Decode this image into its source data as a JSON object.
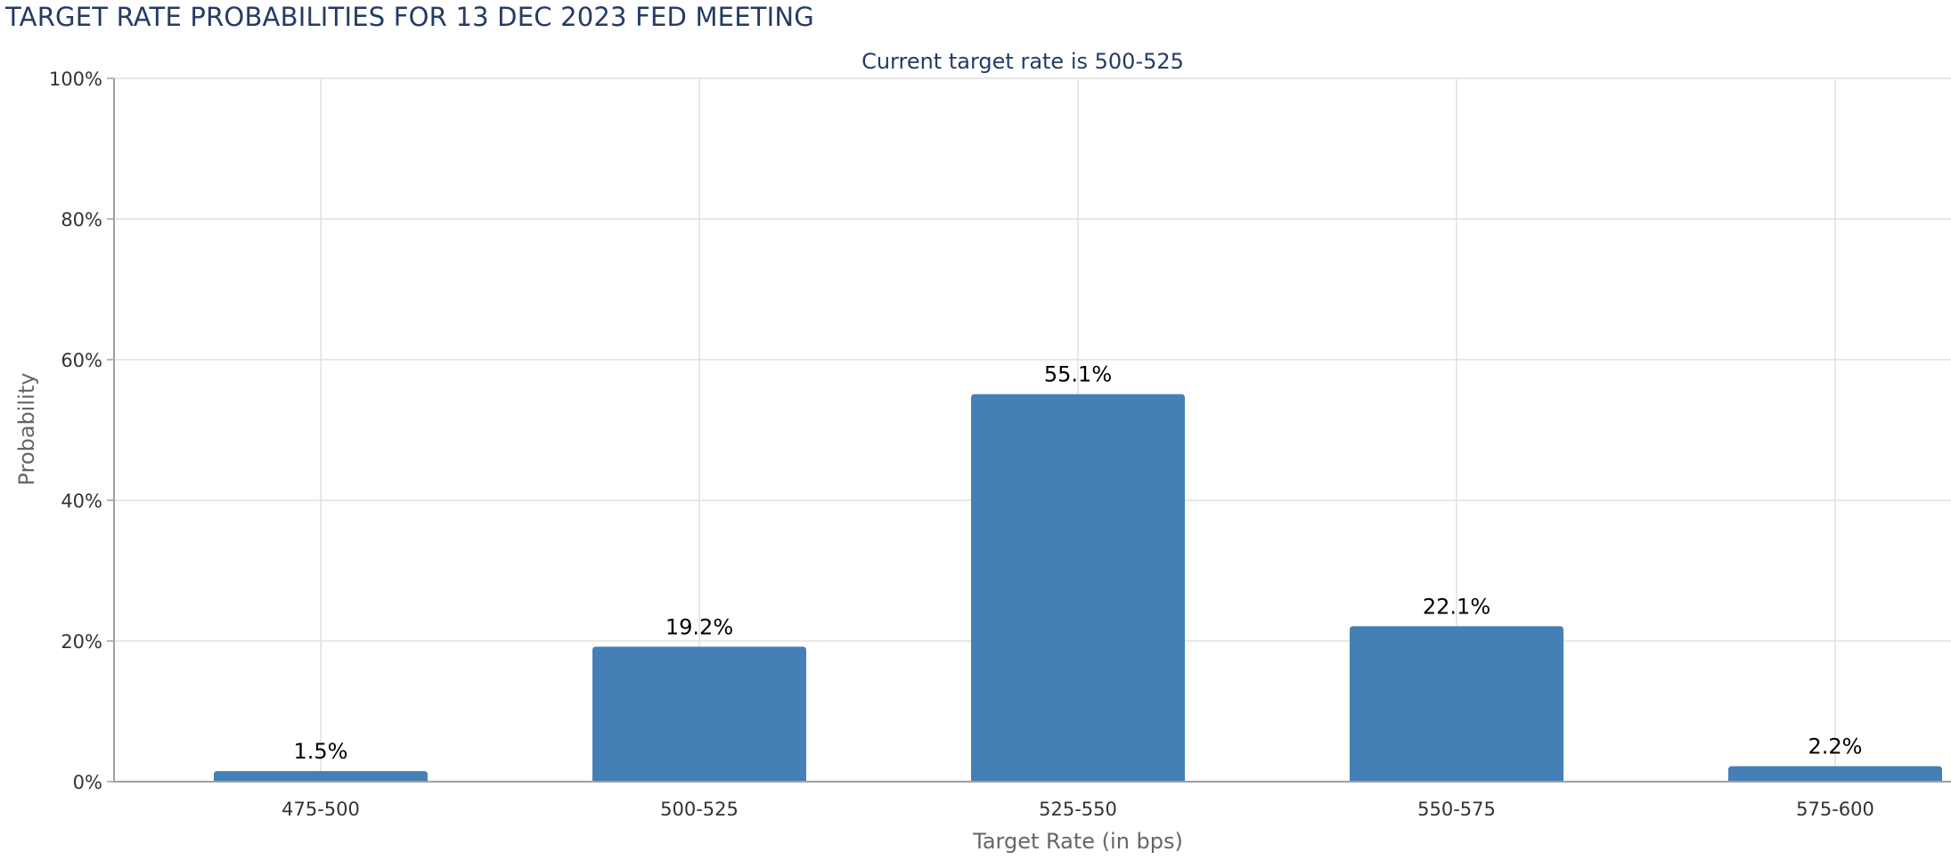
{
  "chart_data": {
    "type": "bar",
    "title": "TARGET RATE PROBABILITIES FOR 13 DEC 2023 FED MEETING",
    "subtitle": "Current target rate is 500-525",
    "xlabel": "Target Rate (in bps)",
    "ylabel": "Probability",
    "categories": [
      "475-500",
      "500-525",
      "525-550",
      "550-575",
      "575-600"
    ],
    "values": [
      1.5,
      19.2,
      55.1,
      22.1,
      2.2
    ],
    "data_labels": [
      "1.5%",
      "19.2%",
      "55.1%",
      "22.1%",
      "2.2%"
    ],
    "ylim": [
      0,
      100
    ],
    "yticks": [
      0,
      20,
      40,
      60,
      80,
      100
    ],
    "ytick_labels": [
      "0%",
      "20%",
      "40%",
      "60%",
      "80%",
      "100%"
    ],
    "grid": true,
    "legend": "none",
    "colors": {
      "bar": "#4480b5",
      "grid": "#e0e0e0",
      "title": "#253b63"
    }
  }
}
